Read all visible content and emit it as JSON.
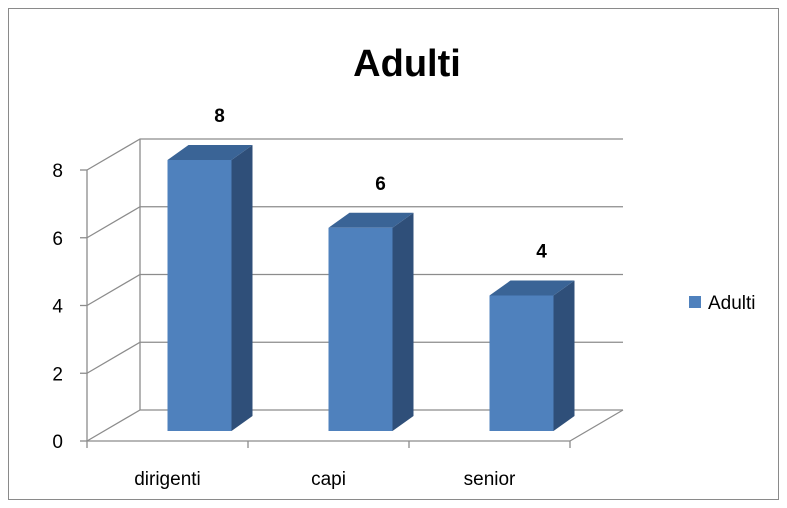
{
  "chart_data": {
    "type": "bar",
    "title": "Adulti",
    "categories": [
      "dirigenti",
      "capi",
      "senior"
    ],
    "series": [
      {
        "name": "Adulti",
        "values": [
          8,
          6,
          4
        ]
      }
    ],
    "ylim": [
      0,
      8
    ],
    "yticks": [
      0,
      2,
      4,
      6,
      8
    ],
    "xlabel": "",
    "ylabel": "",
    "grid": true,
    "legend_position": "right",
    "style": "3d-column"
  },
  "colors": {
    "bar_front": "#4f81bd",
    "bar_side": "#2f4f79",
    "bar_top": "#3a6496",
    "grid": "#8c8c8c"
  }
}
